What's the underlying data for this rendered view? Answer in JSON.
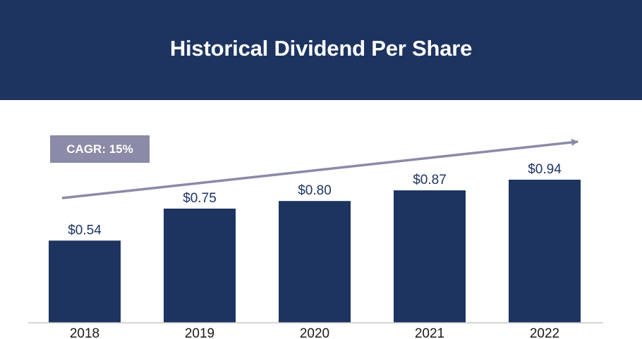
{
  "header": {
    "title": "Historical Dividend Per Share"
  },
  "annotation": {
    "cagr_label": "CAGR: 15%"
  },
  "colors": {
    "header_bg": "#1d3461",
    "bar": "#1d3461",
    "arrow": "#8b8aa8",
    "badge_bg": "#8b8aa8",
    "axis": "#c8c8c8",
    "text": "#1a1a1a",
    "label": "#1d3461"
  },
  "chart_data": {
    "type": "bar",
    "title": "Historical Dividend Per Share",
    "categories": [
      "2018",
      "2019",
      "2020",
      "2021",
      "2022"
    ],
    "values": [
      0.54,
      0.75,
      0.8,
      0.87,
      0.94
    ],
    "value_labels": [
      "$0.54",
      "$0.75",
      "$0.80",
      "$0.87",
      "$0.94"
    ],
    "ylim": [
      0,
      1.0
    ],
    "xlabel": "",
    "ylabel": "",
    "grid": false,
    "legend": "none",
    "annotations": [
      "CAGR: 15%"
    ]
  }
}
